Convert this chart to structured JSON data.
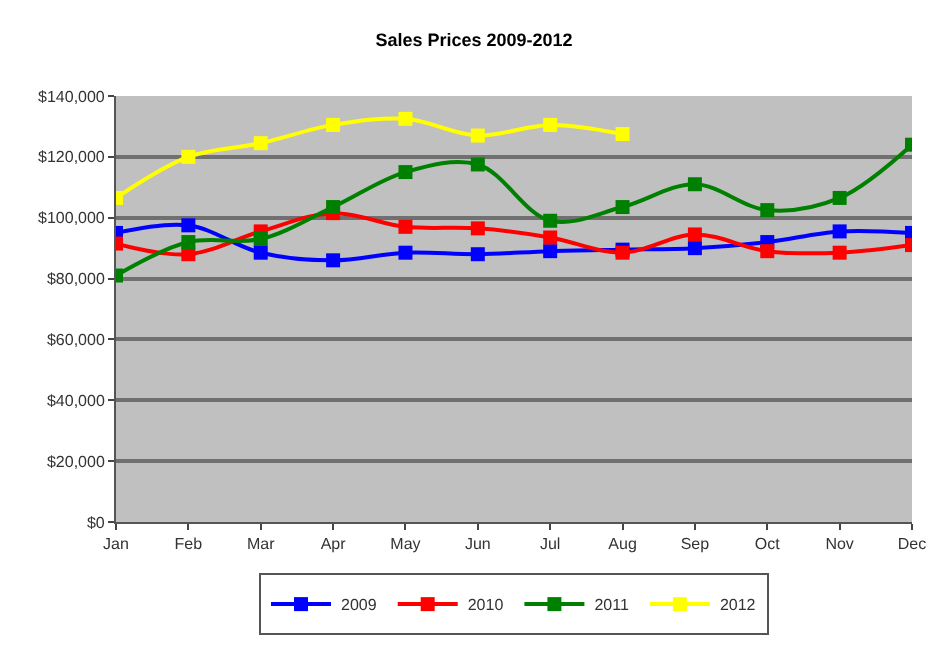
{
  "chart_data": {
    "type": "line",
    "title": "Sales Prices 2009-2012",
    "categories": [
      "Jan",
      "Feb",
      "Mar",
      "Apr",
      "May",
      "Jun",
      "Jul",
      "Aug",
      "Sep",
      "Oct",
      "Nov",
      "Dec"
    ],
    "series": [
      {
        "name": "2009",
        "color": "#0000ff",
        "values": [
          95000,
          97500,
          88500,
          86000,
          88500,
          88000,
          89000,
          89500,
          90000,
          92000,
          95500,
          95000
        ]
      },
      {
        "name": "2010",
        "color": "#ff0000",
        "values": [
          91500,
          88000,
          95500,
          101500,
          97000,
          96500,
          93500,
          88500,
          94500,
          89000,
          88500,
          91000
        ]
      },
      {
        "name": "2011",
        "color": "#008000",
        "values": [
          81000,
          92000,
          93000,
          103500,
          115000,
          117500,
          99000,
          103500,
          111000,
          102500,
          106500,
          124000
        ]
      },
      {
        "name": "2012",
        "color": "#ffff00",
        "values": [
          106500,
          120000,
          124500,
          130500,
          132500,
          127000,
          130500,
          127500,
          null,
          null,
          null,
          null
        ]
      }
    ],
    "ylim": [
      0,
      140000
    ],
    "yticks": [
      {
        "value": 0,
        "label": "$0"
      },
      {
        "value": 20000,
        "label": "$20,000"
      },
      {
        "value": 40000,
        "label": "$40,000"
      },
      {
        "value": 60000,
        "label": "$60,000"
      },
      {
        "value": 80000,
        "label": "$80,000"
      },
      {
        "value": 100000,
        "label": "$100,000"
      },
      {
        "value": 120000,
        "label": "$120,000"
      },
      {
        "value": 140000,
        "label": "$140,000"
      }
    ],
    "grid": "y",
    "legend": "bottom",
    "marker": "square",
    "line_style": "solid"
  }
}
